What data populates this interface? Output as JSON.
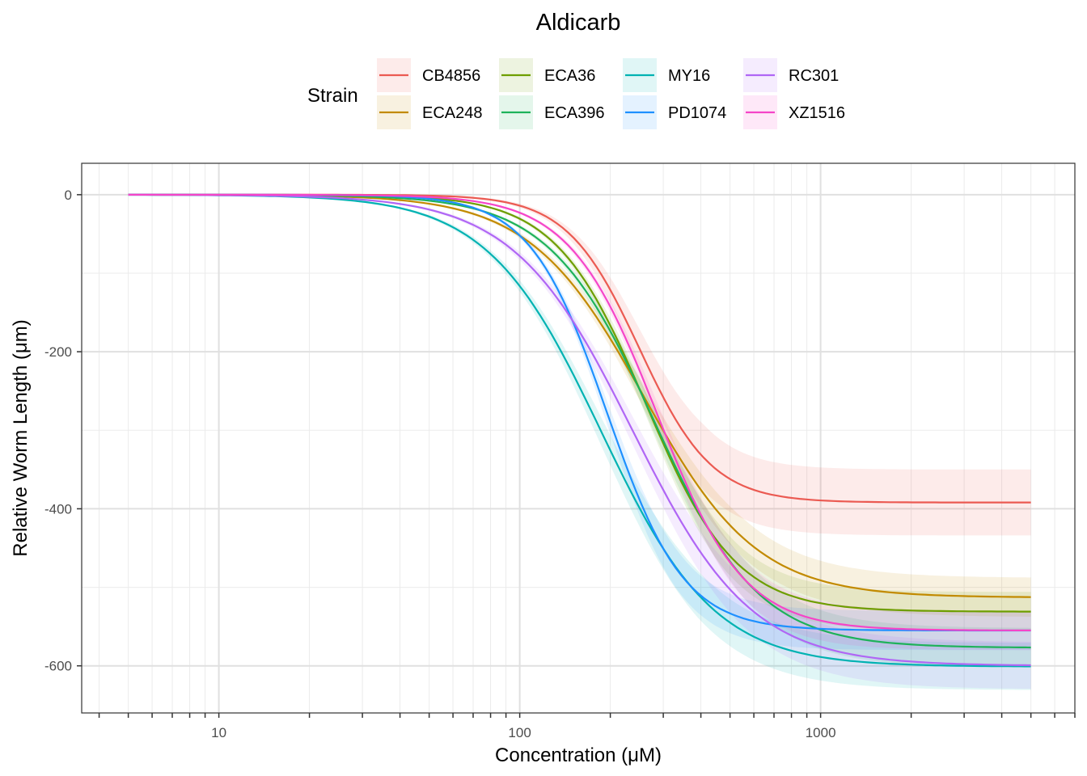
{
  "chart_data": {
    "type": "line",
    "title": "Aldicarb",
    "xlabel": "Concentration (μM)",
    "ylabel": "Relative Worm Length (μm)",
    "x_scale": "log10",
    "xlim": [
      3.5,
      7000
    ],
    "ylim": [
      -660,
      40
    ],
    "x_ticks": [
      10,
      100,
      1000
    ],
    "x_tick_labels": [
      "10",
      "100",
      "1000"
    ],
    "y_ticks": [
      0,
      -200,
      -400,
      -600
    ],
    "y_tick_labels": [
      "0",
      "-200",
      "-400",
      "-600"
    ],
    "x_range": [
      5,
      5000
    ],
    "grid": true,
    "legend": {
      "title": "Strain",
      "position": "top",
      "ncol_layout": "2 rows x 4 columns, column-major"
    },
    "series": [
      {
        "name": "CB4856",
        "color": "#F8766D",
        "model": "log-logistic",
        "top": 0,
        "bottom": -392,
        "ec50": 250,
        "slope": 3.6,
        "ci_halfwidth": 42
      },
      {
        "name": "ECA248",
        "color": "#C49A00",
        "model": "log-logistic",
        "top": 0,
        "bottom": -513,
        "ec50": 258,
        "slope": 2.3,
        "ci_halfwidth": 25
      },
      {
        "name": "ECA36",
        "color": "#53B400",
        "model": "log-logistic",
        "top": 0,
        "bottom": -531,
        "ec50": 262,
        "slope": 2.9,
        "ci_halfwidth": 25
      },
      {
        "name": "ECA396",
        "color": "#00C094",
        "model": "log-logistic",
        "top": 0,
        "bottom": -577,
        "ec50": 280,
        "slope": 2.5,
        "ci_halfwidth": 25
      },
      {
        "name": "MY16",
        "color": "#00B6EB",
        "model": "log-logistic",
        "top": 0,
        "bottom": -601,
        "ec50": 186,
        "slope": 2.3,
        "ci_halfwidth": 30
      },
      {
        "name": "PD1074",
        "color": "#06A4FF",
        "model": "log-logistic",
        "top": 0,
        "bottom": -555,
        "ec50": 195,
        "slope": 3.4,
        "ci_halfwidth": 25
      },
      {
        "name": "RC301",
        "color": "#A58AFF",
        "model": "log-logistic",
        "top": 0,
        "bottom": -600,
        "ec50": 237,
        "slope": 2.2,
        "ci_halfwidth": 30
      },
      {
        "name": "XZ1516",
        "color": "#FB61D7",
        "model": "log-logistic",
        "top": 0,
        "bottom": -555,
        "ec50": 285,
        "slope": 3.0,
        "ci_halfwidth": 25
      }
    ],
    "line_colors_override": {
      "MY16": "#00B2B2",
      "PD1074": "#1E90FF",
      "RC301": "#B066F5",
      "XZ1516": "#F545C8",
      "ECA396": "#1EB25A",
      "ECA36": "#6E9E00",
      "ECA248": "#C28A00",
      "CB4856": "#EB5A52"
    }
  }
}
